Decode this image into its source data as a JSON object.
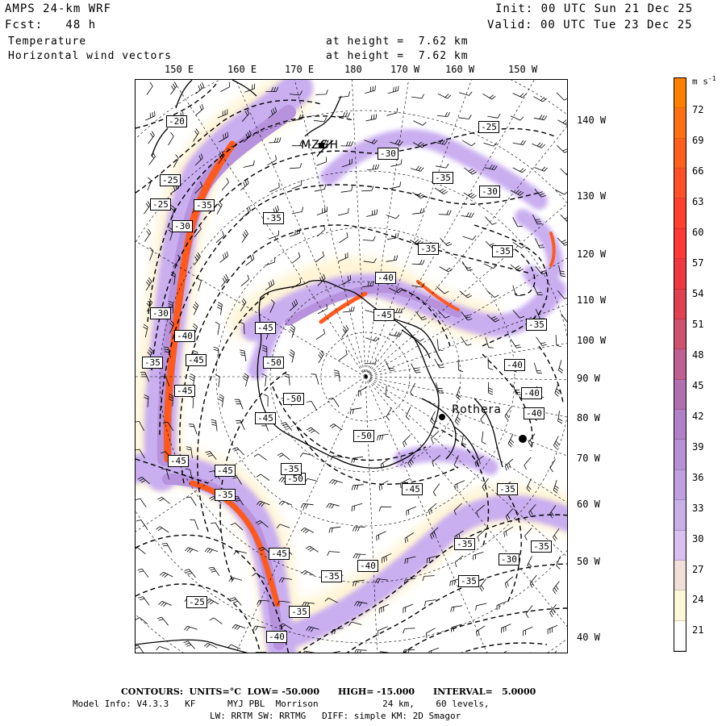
{
  "header": {
    "model": "AMPS 24-km WRF",
    "fcst": "Fcst:   48 h",
    "init": "Init: 00 UTC Sun 21 Dec 25",
    "valid": "Valid: 00 UTC Tue 23 Dec 25",
    "field1": "Temperature",
    "field2": "Horizontal wind vectors",
    "height1": "at height =  7.62 km",
    "height2": "at height =  7.62 km"
  },
  "longitude_labels": [
    "150 E",
    "160 E",
    "170 E",
    "180",
    "170 W",
    "160 W",
    "150 W"
  ],
  "latitude_labels": [
    "140 W",
    "130 W",
    "120 W",
    "110 W",
    "100 W",
    "90 W",
    "80 W",
    "70 W",
    "60 W",
    "50 W",
    "40 W"
  ],
  "station_labels": [
    "MZGH",
    "Rothera"
  ],
  "contour_labels": [
    "-20",
    "-25",
    "-25",
    "-25",
    "-30",
    "-30",
    "-35",
    "-35",
    "-30",
    "-35",
    "-35",
    "-40",
    "-45",
    "-30",
    "-35",
    "-40",
    "-45",
    "-50",
    "-50",
    "-45",
    "-45",
    "-35",
    "-40",
    "-40",
    "-45",
    "-45",
    "-50",
    "-50",
    "-40",
    "-35",
    "-45",
    "-35",
    "-35",
    "-35",
    "-45",
    "-40",
    "-35",
    "-30",
    "-35",
    "-25",
    "-35",
    "-45",
    "-40",
    "-35",
    "-35"
  ],
  "colorbar": {
    "unit": "m s",
    "unit_sup": "-1",
    "ticks": [
      "72",
      "69",
      "66",
      "63",
      "60",
      "57",
      "54",
      "51",
      "48",
      "45",
      "42",
      "39",
      "36",
      "33",
      "30",
      "27",
      "24",
      "21"
    ],
    "colors": [
      "#ff7f00",
      "#ff7015",
      "#ff6020",
      "#ff5028",
      "#ff4030",
      "#ff3838",
      "#f03840",
      "#e04050",
      "#d05070",
      "#c06090",
      "#b070b0",
      "#b080c8",
      "#b890d8",
      "#c0a0e0",
      "#c8b0e8",
      "#d8c0f0",
      "#f0e0d8",
      "#fff8d8",
      "#ffffff"
    ]
  },
  "footer": {
    "contours": "CONTOURS:  UNITS=°C  LOW= -50.000      HIGH= -15.000      INTERVAL=   5.0000",
    "info1": "Model Info: V4.3.3   KF      MYJ PBL  Morrison            24 km,    60 levels,",
    "info2": "LW: RRTM SW: RRTMG   DIFF: simple KM: 2D Smagor"
  }
}
